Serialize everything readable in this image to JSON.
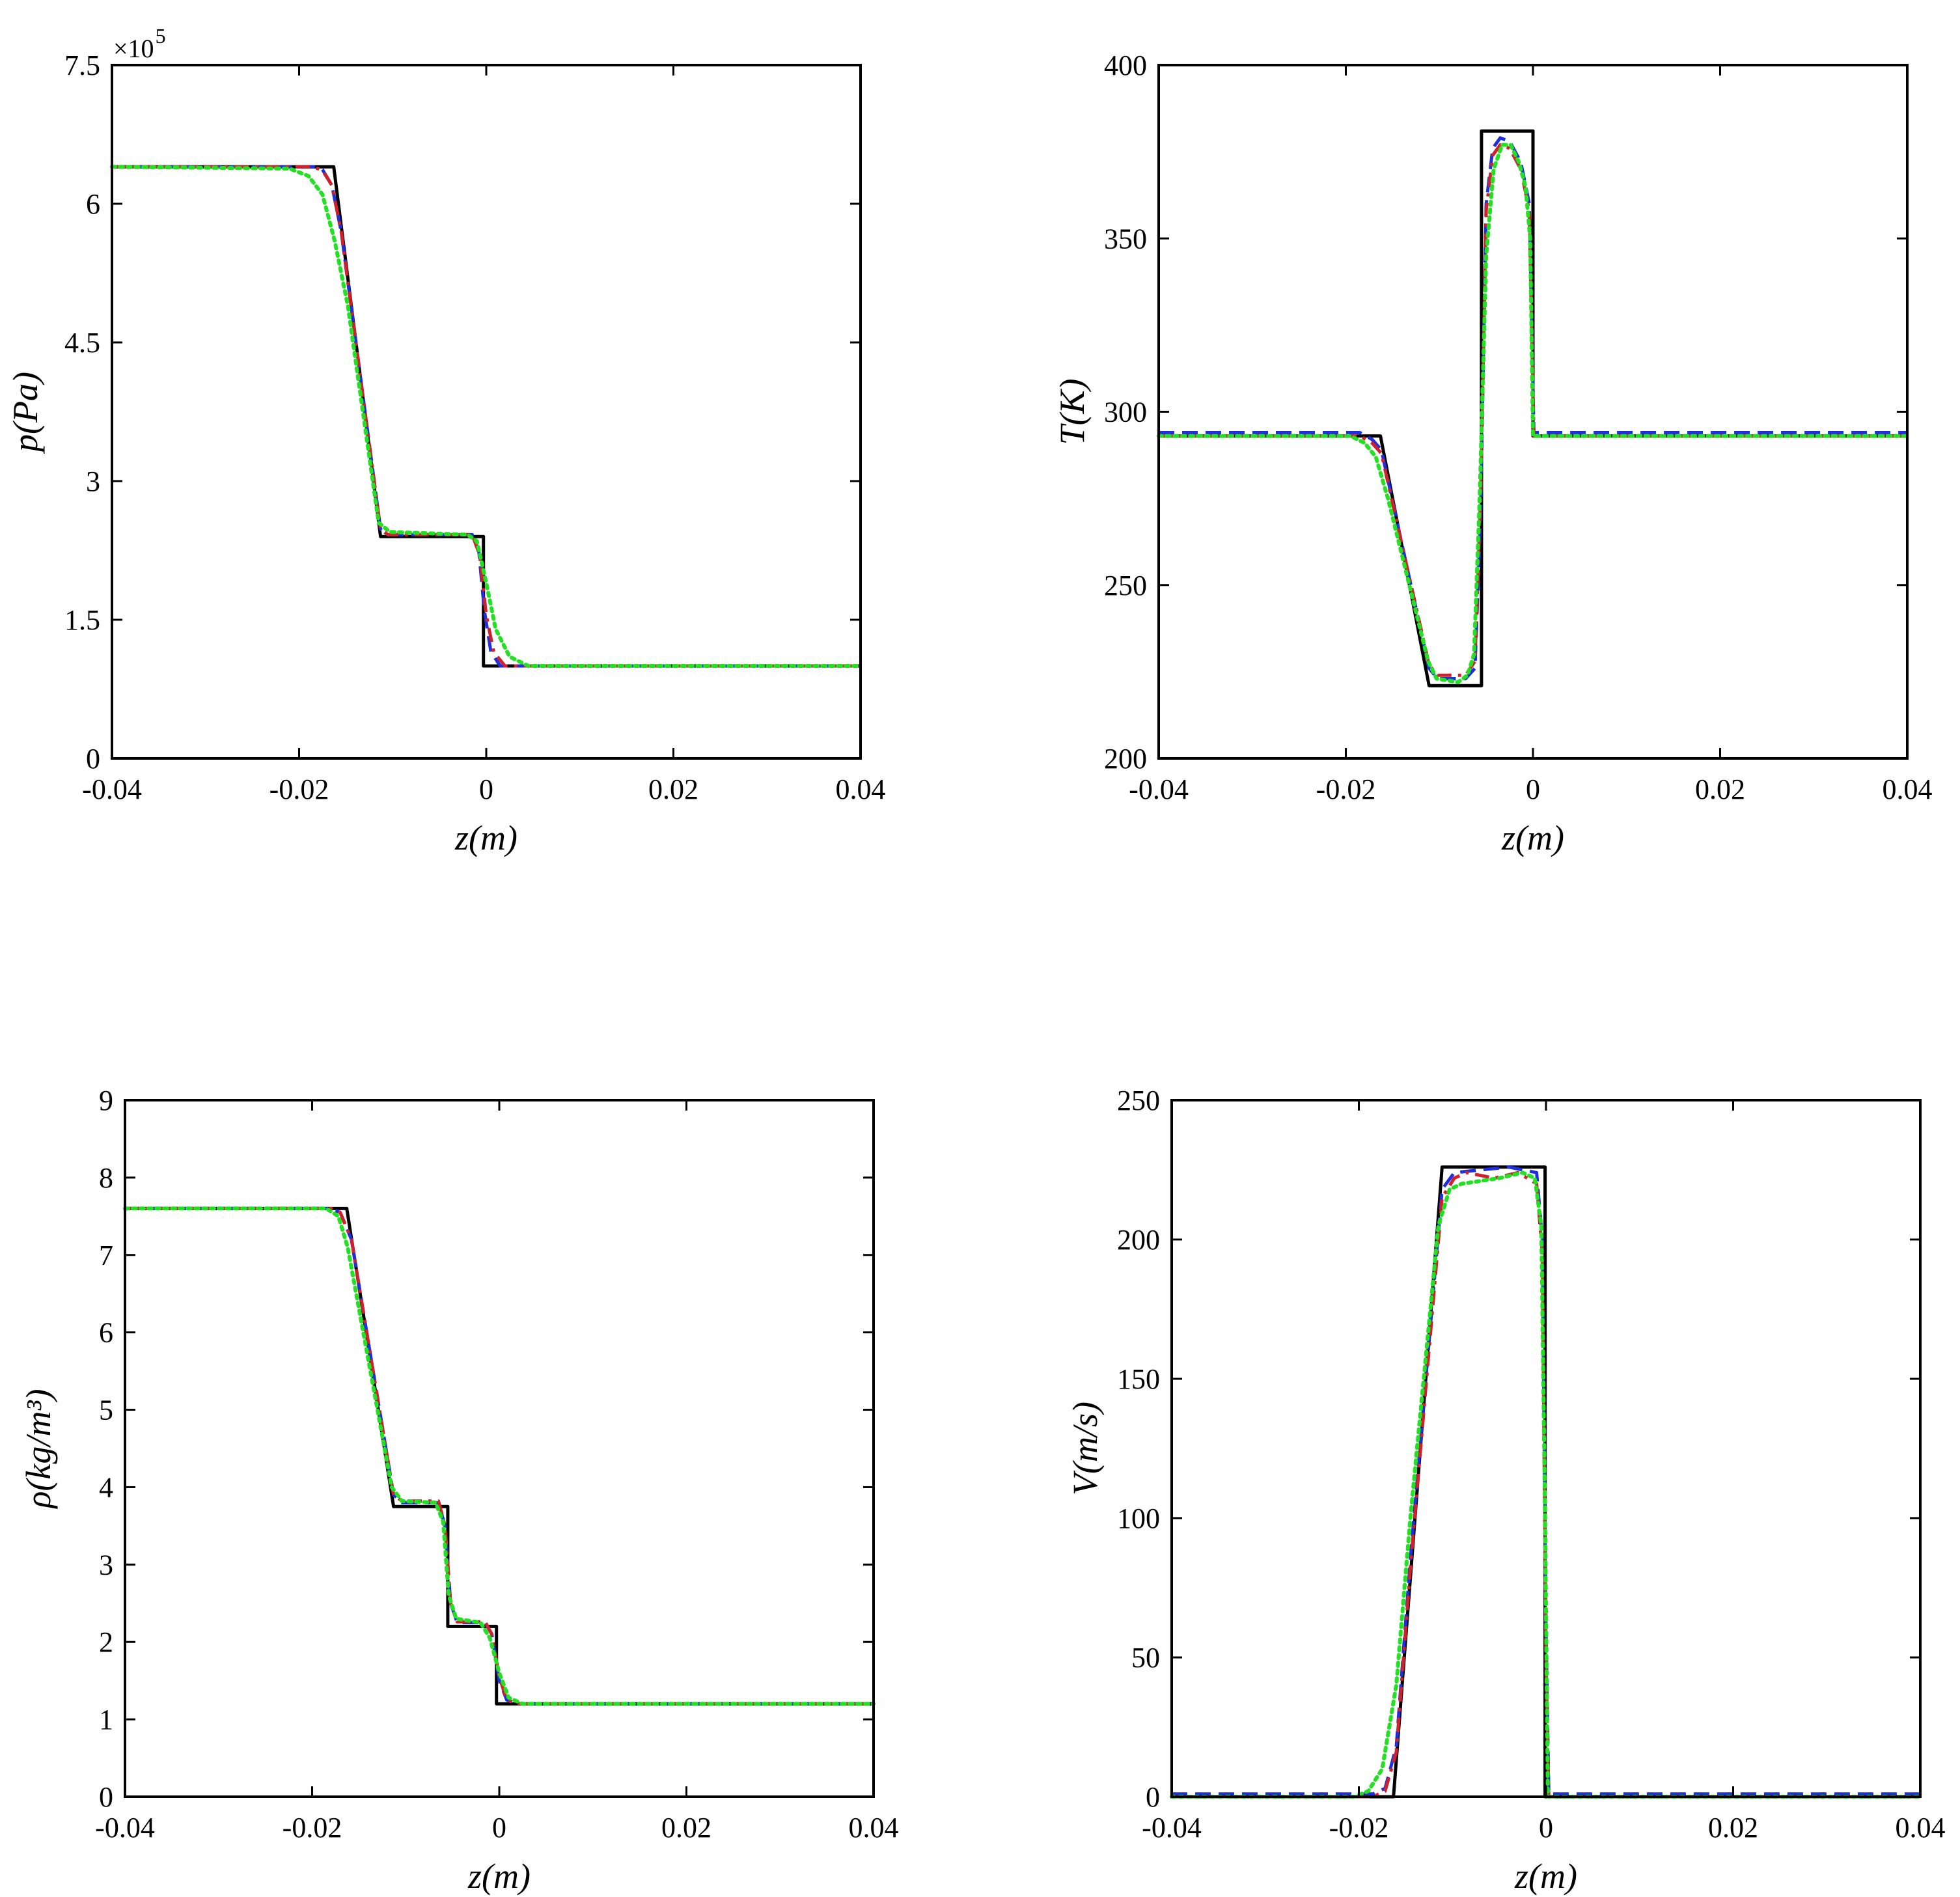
{
  "colors": {
    "exact": "#000000",
    "blue": "#1f2fe0",
    "red": "#d0202c",
    "green": "#22e022",
    "axes": "#000000"
  },
  "chart_data": [
    {
      "type": "line",
      "id": "pressure",
      "xlabel": "z(m)",
      "ylabel": "p(Pa)",
      "exponent_label": "×10",
      "exponent_power": "5",
      "xlim": [
        -0.04,
        0.04
      ],
      "ylim": [
        0,
        7.5
      ],
      "xticks": [
        -0.04,
        -0.02,
        0,
        0.02,
        0.04
      ],
      "xtick_labels": [
        "-0.04",
        "-0.02",
        "0",
        "0.02",
        "0.04"
      ],
      "yticks": [
        0,
        1.5,
        3,
        4.5,
        6,
        7.5
      ],
      "ytick_labels": [
        "0",
        "1.5",
        "3",
        "4.5",
        "6",
        "7.5"
      ],
      "series": [
        {
          "name": "exact",
          "style": "solid",
          "x": [
            -0.04,
            -0.0163,
            -0.0113,
            -0.0003,
            -0.0003,
            0.04
          ],
          "y": [
            6.4,
            6.4,
            2.4,
            2.4,
            1.0,
            1.0
          ]
        },
        {
          "name": "blue",
          "style": "dashed",
          "x": [
            -0.04,
            -0.0185,
            -0.0175,
            -0.0165,
            -0.0155,
            -0.0113,
            -0.0105,
            -0.0015,
            -0.0008,
            -0.0002,
            0.0005,
            0.0015,
            0.04
          ],
          "y": [
            6.4,
            6.4,
            6.37,
            6.2,
            5.7,
            2.48,
            2.42,
            2.42,
            2.25,
            1.6,
            1.15,
            1.0,
            1.0
          ]
        },
        {
          "name": "red",
          "style": "dashdot",
          "x": [
            -0.04,
            -0.0185,
            -0.0175,
            -0.0165,
            -0.0155,
            -0.0113,
            -0.0105,
            -0.0015,
            -0.0007,
            0.0,
            0.0008,
            0.002,
            0.04
          ],
          "y": [
            6.4,
            6.4,
            6.36,
            6.2,
            5.7,
            2.48,
            2.42,
            2.42,
            2.2,
            1.55,
            1.15,
            1.0,
            1.0
          ]
        },
        {
          "name": "green",
          "style": "dotted",
          "x": [
            -0.04,
            -0.021,
            -0.019,
            -0.0175,
            -0.0162,
            -0.0148,
            -0.0115,
            -0.0103,
            -0.002,
            -0.001,
            0.0,
            0.001,
            0.0025,
            0.0045,
            0.04
          ],
          "y": [
            6.4,
            6.38,
            6.3,
            6.1,
            5.6,
            4.9,
            2.55,
            2.45,
            2.42,
            2.35,
            1.9,
            1.4,
            1.1,
            1.0,
            1.0
          ]
        }
      ]
    },
    {
      "type": "line",
      "id": "temperature",
      "xlabel": "z(m)",
      "ylabel": "T(K)",
      "xlim": [
        -0.04,
        0.04
      ],
      "ylim": [
        200,
        400
      ],
      "xticks": [
        -0.04,
        -0.02,
        0,
        0.02,
        0.04
      ],
      "xtick_labels": [
        "-0.04",
        "-0.02",
        "0",
        "0.02",
        "0.04"
      ],
      "yticks": [
        200,
        250,
        300,
        350,
        400
      ],
      "ytick_labels": [
        "200",
        "250",
        "300",
        "350",
        "400"
      ],
      "series": [
        {
          "name": "exact",
          "style": "solid",
          "x": [
            -0.04,
            -0.0163,
            -0.0111,
            -0.0055,
            -0.0055,
            0.0,
            0.0,
            0.04
          ],
          "y": [
            293,
            293,
            221,
            221,
            381,
            381,
            293,
            293
          ]
        },
        {
          "name": "blue",
          "style": "dashed",
          "x": [
            -0.04,
            -0.0185,
            -0.0172,
            -0.0162,
            -0.0111,
            -0.0102,
            -0.0072,
            -0.0062,
            -0.0056,
            -0.005,
            -0.0043,
            -0.0035,
            -0.0025,
            -0.0013,
            -0.0004,
            -0.0001,
            0.0001,
            0.04
          ],
          "y": [
            294,
            294,
            292,
            289,
            226,
            223,
            223,
            226,
            270,
            360,
            376,
            379,
            378,
            372,
            360,
            320,
            294,
            294
          ]
        },
        {
          "name": "red",
          "style": "dashdot",
          "x": [
            -0.04,
            -0.0185,
            -0.0172,
            -0.0162,
            -0.0111,
            -0.0102,
            -0.0072,
            -0.0062,
            -0.0056,
            -0.005,
            -0.0043,
            -0.0035,
            -0.0025,
            -0.0013,
            -0.0004,
            -0.0001,
            0.0001,
            0.04
          ],
          "y": [
            293,
            293,
            291,
            288,
            227,
            224,
            224,
            228,
            275,
            358,
            374,
            377,
            376,
            370,
            358,
            318,
            293,
            293
          ]
        },
        {
          "name": "green",
          "style": "dotted",
          "x": [
            -0.04,
            -0.0195,
            -0.018,
            -0.0168,
            -0.0155,
            -0.0112,
            -0.0103,
            -0.008,
            -0.007,
            -0.0063,
            -0.0057,
            -0.005,
            -0.0042,
            -0.0033,
            -0.0024,
            -0.0015,
            -0.0008,
            -0.0003,
            0.0,
            0.04
          ],
          "y": [
            293,
            293,
            291,
            287,
            275,
            228,
            223,
            222,
            224,
            230,
            275,
            345,
            370,
            377,
            377,
            372,
            365,
            350,
            293,
            293
          ]
        }
      ]
    },
    {
      "type": "line",
      "id": "density",
      "xlabel": "z(m)",
      "ylabel": "ρ(kg/m³)",
      "xlim": [
        -0.04,
        0.04
      ],
      "ylim": [
        0,
        9
      ],
      "xticks": [
        -0.04,
        -0.02,
        0,
        0.02,
        0.04
      ],
      "xtick_labels": [
        "-0.04",
        "-0.02",
        "0",
        "0.02",
        "0.04"
      ],
      "yticks": [
        0,
        1,
        2,
        3,
        4,
        5,
        6,
        7,
        8,
        9
      ],
      "ytick_labels": [
        "0",
        "1",
        "2",
        "3",
        "4",
        "5",
        "6",
        "7",
        "8",
        "9"
      ],
      "series": [
        {
          "name": "exact",
          "style": "solid",
          "x": [
            -0.04,
            -0.0163,
            -0.0113,
            -0.0055,
            -0.0055,
            -0.0003,
            -0.0003,
            0.04
          ],
          "y": [
            7.6,
            7.6,
            3.75,
            3.75,
            2.2,
            2.2,
            1.2,
            1.2
          ]
        },
        {
          "name": "blue",
          "style": "dashed",
          "x": [
            -0.04,
            -0.018,
            -0.017,
            -0.0158,
            -0.0113,
            -0.0104,
            -0.0065,
            -0.0058,
            -0.0052,
            -0.0045,
            -0.0015,
            -0.0008,
            0.0,
            0.0008,
            0.002,
            0.04
          ],
          "y": [
            7.6,
            7.6,
            7.55,
            7.2,
            3.9,
            3.8,
            3.8,
            3.5,
            2.5,
            2.25,
            2.25,
            2.1,
            1.5,
            1.25,
            1.2,
            1.2
          ]
        },
        {
          "name": "red",
          "style": "dashdot",
          "x": [
            -0.04,
            -0.018,
            -0.017,
            -0.0158,
            -0.0113,
            -0.0104,
            -0.0065,
            -0.0058,
            -0.0052,
            -0.0045,
            -0.0015,
            -0.0008,
            0.0,
            0.0008,
            0.002,
            0.04
          ],
          "y": [
            7.6,
            7.6,
            7.55,
            7.2,
            3.9,
            3.82,
            3.82,
            3.5,
            2.5,
            2.26,
            2.26,
            2.1,
            1.55,
            1.25,
            1.2,
            1.2
          ]
        },
        {
          "name": "green",
          "style": "dotted",
          "x": [
            -0.04,
            -0.0185,
            -0.0172,
            -0.0162,
            -0.0115,
            -0.0104,
            -0.0068,
            -0.006,
            -0.0054,
            -0.0046,
            -0.002,
            -0.001,
            0.0,
            0.001,
            0.0025,
            0.04
          ],
          "y": [
            7.6,
            7.6,
            7.5,
            7.1,
            4.0,
            3.82,
            3.8,
            3.55,
            2.6,
            2.3,
            2.25,
            2.05,
            1.6,
            1.28,
            1.2,
            1.2
          ]
        }
      ]
    },
    {
      "type": "line",
      "id": "velocity",
      "xlabel": "z(m)",
      "ylabel": "V(m/s)",
      "xlim": [
        -0.04,
        0.04
      ],
      "ylim": [
        0,
        250
      ],
      "xticks": [
        -0.04,
        -0.02,
        0,
        0.02,
        0.04
      ],
      "xtick_labels": [
        "-0.04",
        "-0.02",
        "0",
        "0.02",
        "0.04"
      ],
      "yticks": [
        0,
        50,
        100,
        150,
        200,
        250
      ],
      "ytick_labels": [
        "0",
        "50",
        "100",
        "150",
        "200",
        "250"
      ],
      "series": [
        {
          "name": "exact",
          "style": "solid",
          "x": [
            -0.04,
            -0.0163,
            -0.0111,
            -0.0001,
            -0.0001,
            0.04
          ],
          "y": [
            0,
            0,
            226,
            226,
            0,
            0
          ]
        },
        {
          "name": "blue",
          "style": "dashed",
          "x": [
            -0.04,
            -0.0185,
            -0.0172,
            -0.016,
            -0.0145,
            -0.0111,
            -0.0098,
            -0.004,
            -0.001,
            -0.0004,
            0.0,
            0.0003,
            0.04
          ],
          "y": [
            1,
            1,
            3,
            18,
            85,
            218,
            224,
            226,
            224,
            200,
            60,
            1,
            1
          ]
        },
        {
          "name": "red",
          "style": "dashdot",
          "x": [
            -0.04,
            -0.0185,
            -0.0172,
            -0.016,
            -0.0145,
            -0.0111,
            -0.0098,
            -0.0085,
            -0.0055,
            -0.003,
            -0.001,
            -0.0004,
            0.0,
            0.0003,
            0.04
          ],
          "y": [
            0,
            0,
            2,
            16,
            82,
            215,
            222,
            224,
            222,
            224,
            220,
            195,
            50,
            0,
            0
          ]
        },
        {
          "name": "green",
          "style": "dotted",
          "x": [
            -0.04,
            -0.0205,
            -0.019,
            -0.0175,
            -0.016,
            -0.0145,
            -0.0115,
            -0.0103,
            -0.009,
            -0.007,
            -0.005,
            -0.0025,
            -0.0012,
            -0.0005,
            -0.0001,
            0.0002,
            0.04
          ],
          "y": [
            0,
            0,
            2,
            10,
            40,
            100,
            205,
            218,
            220,
            221,
            222,
            224,
            222,
            205,
            100,
            0,
            0
          ]
        }
      ]
    }
  ]
}
